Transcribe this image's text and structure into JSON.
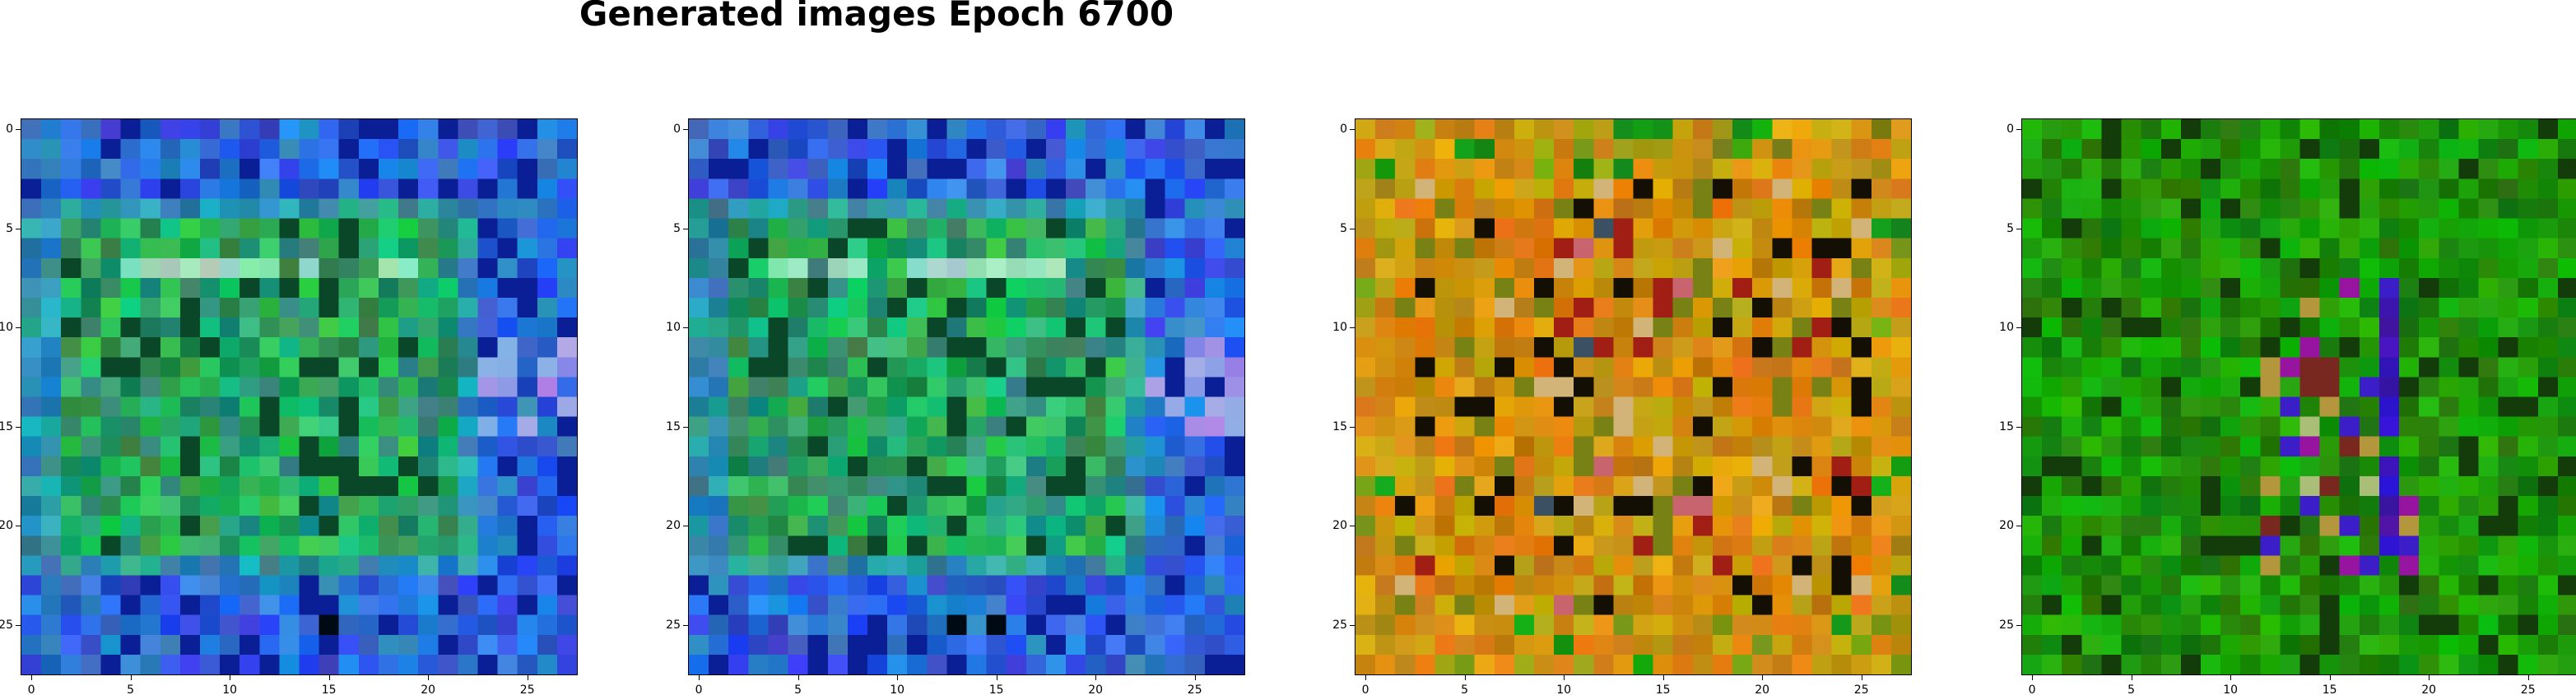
{
  "figure": {
    "title": "Generated images Epoch 6700"
  },
  "axes": {
    "grid_size": 28,
    "x_ticks": [
      "0",
      "5",
      "10",
      "15",
      "20",
      "25"
    ],
    "y_ticks": [
      "0",
      "5",
      "10",
      "15",
      "20",
      "25"
    ],
    "tick_values": [
      0,
      5,
      10,
      15,
      20,
      25
    ]
  },
  "panels": [
    {
      "name": "generated-image-1",
      "palette": "blue-green"
    },
    {
      "name": "generated-image-2",
      "palette": "blue-green"
    },
    {
      "name": "generated-image-3",
      "palette": "orange-ochre"
    },
    {
      "name": "generated-image-4",
      "palette": "green"
    }
  ]
}
